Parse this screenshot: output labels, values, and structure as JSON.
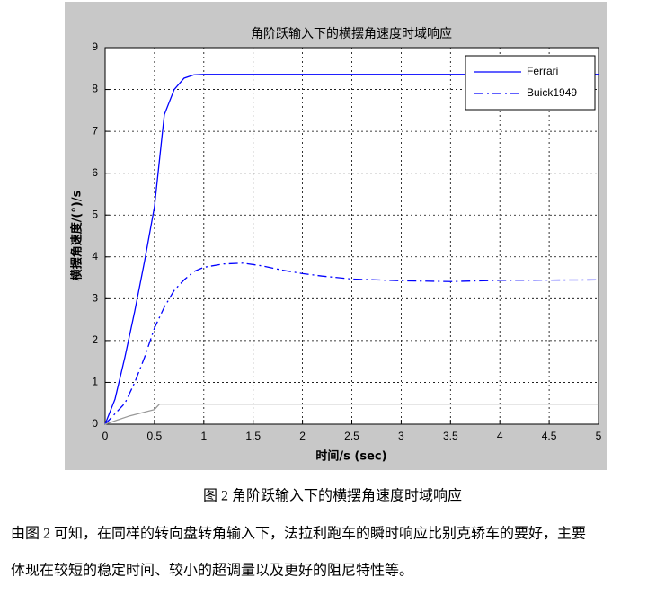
{
  "chart_data": {
    "type": "line",
    "title": "角阶跃输入下的横摆角速度时域响应",
    "xlabel": "时间/s (sec)",
    "ylabel": "横摆角速度/(°)/s",
    "xlim": [
      0,
      5
    ],
    "ylim": [
      0,
      9
    ],
    "xticks": [
      0,
      0.5,
      1,
      1.5,
      2,
      2.5,
      3,
      3.5,
      4,
      4.5,
      5
    ],
    "yticks": [
      0,
      1,
      2,
      3,
      4,
      5,
      6,
      7,
      8,
      9
    ],
    "grid": true,
    "legend": "upper right",
    "series": [
      {
        "name": "Ferrari",
        "color": "#0000ff",
        "style": "solid",
        "x": [
          0,
          0.1,
          0.2,
          0.3,
          0.4,
          0.5,
          0.55,
          0.6,
          0.7,
          0.8,
          0.9,
          1.0,
          2,
          3,
          4,
          5
        ],
        "values": [
          0,
          0.6,
          1.6,
          2.7,
          3.9,
          5.2,
          6.3,
          7.4,
          8.0,
          8.27,
          8.35,
          8.36,
          8.36,
          8.36,
          8.36,
          8.36
        ]
      },
      {
        "name": "Buick1949",
        "color": "#0000ff",
        "style": "dashdot",
        "x": [
          0,
          0.2,
          0.3,
          0.4,
          0.5,
          0.6,
          0.7,
          0.8,
          0.9,
          1.0,
          1.2,
          1.4,
          1.6,
          1.8,
          2.0,
          2.2,
          2.5,
          3,
          3.5,
          4,
          5
        ],
        "values": [
          0,
          0.5,
          1.0,
          1.6,
          2.3,
          2.8,
          3.2,
          3.45,
          3.65,
          3.75,
          3.83,
          3.85,
          3.78,
          3.68,
          3.6,
          3.54,
          3.47,
          3.43,
          3.41,
          3.44,
          3.45
        ]
      },
      {
        "color": "#999999",
        "style": "solid",
        "x": [
          0,
          0.25,
          0.5,
          0.55,
          1,
          5
        ],
        "values": [
          0,
          0.2,
          0.35,
          0.48,
          0.48,
          0.48
        ]
      }
    ]
  },
  "caption": "图 2  角阶跃输入下的横摆角速度时域响应",
  "paragraph": [
    "由图 2 可知，在同样的转向盘转角输入下，法拉利跑车的瞬时响应比别克轿车的要好，主要",
    "体现在较短的稳定时间、较小的超调量以及更好的阻尼特性等。"
  ]
}
